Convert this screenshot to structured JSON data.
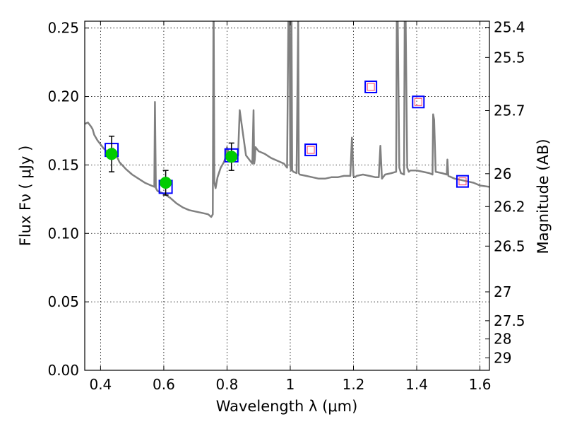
{
  "chart_data": {
    "type": "line",
    "xlabel": "Wavelength  λ (μm)",
    "ylabel": "Flux  Fν  ( μJy )",
    "y2label": "Magnitude (AB)",
    "xlim": [
      0.35,
      1.63
    ],
    "ylim": [
      0.0,
      0.255
    ],
    "grid": true,
    "x_ticks": [
      0.4,
      0.6,
      0.8,
      1.0,
      1.2,
      1.4,
      1.6
    ],
    "x_tick_labels": [
      "0.4",
      "0.6",
      "0.8",
      "1",
      "1.2",
      "1.4",
      "1.6"
    ],
    "y_ticks": [
      0.0,
      0.05,
      0.1,
      0.15,
      0.2,
      0.25
    ],
    "y_tick_labels": [
      "0.00",
      "0.05",
      "0.10",
      "0.15",
      "0.20",
      "0.25"
    ],
    "y2_ticks": [
      {
        "label": "25.4",
        "flux": 0.2505
      },
      {
        "label": "25.5",
        "flux": 0.2285
      },
      {
        "label": "25.7",
        "flux": 0.1897
      },
      {
        "label": "26",
        "flux": 0.1436
      },
      {
        "label": "26.2",
        "flux": 0.1196
      },
      {
        "label": "26.5",
        "flux": 0.0907
      },
      {
        "label": "27",
        "flux": 0.0573
      },
      {
        "label": "27.5",
        "flux": 0.0362
      },
      {
        "label": "28",
        "flux": 0.0229
      },
      {
        "label": "29",
        "flux": 0.0091
      }
    ],
    "series": [
      {
        "kind": "model-spectrum",
        "color": "#808080",
        "x": [
          0.35,
          0.36,
          0.37,
          0.375,
          0.38,
          0.39,
          0.4,
          0.41,
          0.42,
          0.43,
          0.44,
          0.45,
          0.46,
          0.48,
          0.5,
          0.52,
          0.54,
          0.56,
          0.57,
          0.572,
          0.575,
          0.58,
          0.6,
          0.62,
          0.64,
          0.66,
          0.68,
          0.7,
          0.72,
          0.74,
          0.75,
          0.755,
          0.757,
          0.758,
          0.76,
          0.762,
          0.764,
          0.77,
          0.78,
          0.79,
          0.795,
          0.8,
          0.805,
          0.81,
          0.82,
          0.83,
          0.835,
          0.84,
          0.86,
          0.88,
          0.884,
          0.886,
          0.888,
          0.89,
          0.9,
          0.92,
          0.94,
          0.96,
          0.98,
          0.99,
          0.994,
          0.998,
          1.0,
          1.002,
          1.004,
          1.006,
          1.01,
          1.02,
          1.025,
          1.027,
          1.03,
          1.05,
          1.07,
          1.09,
          1.11,
          1.13,
          1.15,
          1.17,
          1.19,
          1.195,
          1.2,
          1.205,
          1.21,
          1.23,
          1.25,
          1.27,
          1.28,
          1.285,
          1.29,
          1.3,
          1.32,
          1.335,
          1.337,
          1.34,
          1.345,
          1.35,
          1.36,
          1.362,
          1.365,
          1.37,
          1.375,
          1.38,
          1.4,
          1.42,
          1.44,
          1.45,
          1.452,
          1.455,
          1.46,
          1.48,
          1.495,
          1.497,
          1.5,
          1.52,
          1.54,
          1.56,
          1.58,
          1.6,
          1.63
        ],
        "y": [
          0.18,
          0.181,
          0.178,
          0.176,
          0.172,
          0.168,
          0.165,
          0.162,
          0.16,
          0.158,
          0.162,
          0.157,
          0.152,
          0.147,
          0.143,
          0.14,
          0.137,
          0.135,
          0.134,
          0.196,
          0.133,
          0.131,
          0.129,
          0.126,
          0.122,
          0.119,
          0.117,
          0.116,
          0.115,
          0.114,
          0.112,
          0.114,
          0.255,
          0.255,
          0.138,
          0.135,
          0.133,
          0.141,
          0.148,
          0.152,
          0.155,
          0.163,
          0.159,
          0.158,
          0.156,
          0.155,
          0.157,
          0.19,
          0.157,
          0.151,
          0.19,
          0.151,
          0.154,
          0.163,
          0.16,
          0.158,
          0.155,
          0.153,
          0.151,
          0.148,
          0.255,
          0.255,
          0.15,
          0.146,
          0.255,
          0.146,
          0.145,
          0.144,
          0.255,
          0.144,
          0.143,
          0.142,
          0.141,
          0.14,
          0.14,
          0.141,
          0.141,
          0.142,
          0.142,
          0.17,
          0.142,
          0.141,
          0.142,
          0.143,
          0.142,
          0.141,
          0.141,
          0.164,
          0.14,
          0.143,
          0.144,
          0.145,
          0.255,
          0.255,
          0.148,
          0.144,
          0.143,
          0.255,
          0.255,
          0.148,
          0.145,
          0.146,
          0.146,
          0.145,
          0.144,
          0.143,
          0.187,
          0.183,
          0.145,
          0.144,
          0.143,
          0.154,
          0.142,
          0.14,
          0.139,
          0.138,
          0.137,
          0.135,
          0.134
        ]
      },
      {
        "kind": "observed-photometry",
        "marker": "circle",
        "color": "#00cc00",
        "points": [
          {
            "x": 0.435,
            "y": 0.158,
            "err": 0.013
          },
          {
            "x": 0.606,
            "y": 0.137,
            "err": 0.009
          },
          {
            "x": 0.814,
            "y": 0.156,
            "err": 0.01
          }
        ]
      },
      {
        "kind": "model-photometry",
        "marker": "square",
        "color": "#0000ff",
        "points": [
          {
            "x": 0.435,
            "y": 0.161
          },
          {
            "x": 0.606,
            "y": 0.134
          },
          {
            "x": 0.814,
            "y": 0.157
          }
        ]
      },
      {
        "kind": "upper-limits-model",
        "marker": "double-square",
        "color": "#0000ff",
        "inner_color": "#ff4060",
        "points": [
          {
            "x": 1.065,
            "y": 0.161
          },
          {
            "x": 1.255,
            "y": 0.207
          },
          {
            "x": 1.405,
            "y": 0.196
          },
          {
            "x": 1.545,
            "y": 0.138
          }
        ]
      }
    ]
  }
}
